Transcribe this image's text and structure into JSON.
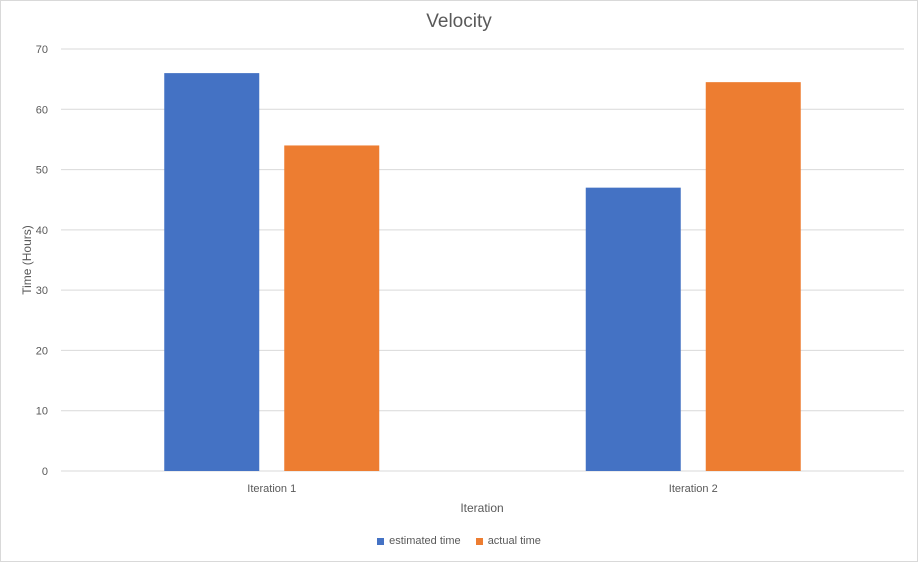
{
  "chart_data": {
    "type": "bar",
    "title": "Velocity",
    "xlabel": "Iteration",
    "ylabel": "Time (Hours)",
    "categories": [
      "Iteration 1",
      "Iteration 2"
    ],
    "ylim": [
      0,
      70
    ],
    "yticks": [
      0,
      10,
      20,
      30,
      40,
      50,
      60,
      70
    ],
    "grid": true,
    "legend_position": "bottom",
    "series": [
      {
        "name": "estimated time",
        "color": "#4472c4",
        "values": [
          66,
          47
        ]
      },
      {
        "name": "actual time",
        "color": "#ed7d31",
        "values": [
          54,
          64.5
        ]
      }
    ]
  }
}
